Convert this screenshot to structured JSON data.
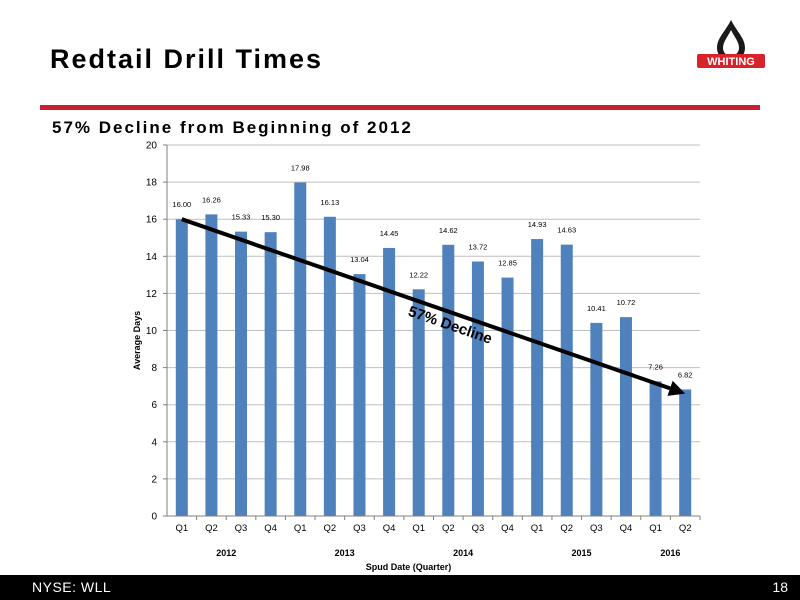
{
  "slide": {
    "title": "Redtail Drill Times",
    "subtitle": "57% Decline from Beginning of 2012",
    "logo_text": "WHITING"
  },
  "footer": {
    "left": "NYSE: WLL",
    "page_number": "18"
  },
  "colors": {
    "bar": "#4f81bd",
    "accent_red": "#c8202f",
    "logo_red": "#d8232a"
  },
  "chart_data": {
    "type": "bar",
    "categories": [
      "Q1",
      "Q2",
      "Q3",
      "Q4",
      "Q1",
      "Q2",
      "Q3",
      "Q4",
      "Q1",
      "Q2",
      "Q3",
      "Q4",
      "Q1",
      "Q2",
      "Q3",
      "Q4",
      "Q1",
      "Q2"
    ],
    "values": [
      16.0,
      16.26,
      15.33,
      15.3,
      17.98,
      16.13,
      13.04,
      14.45,
      12.22,
      14.62,
      13.72,
      12.85,
      14.93,
      14.63,
      10.41,
      10.72,
      7.26,
      6.82
    ],
    "value_labels": [
      "16.00",
      "16.26",
      "15.33",
      "15.30",
      "17.98",
      "16.13",
      "13.04",
      "14.45",
      "12.22",
      "14.62",
      "13.72",
      "12.85",
      "14.93",
      "14.63",
      "10.41",
      "10.72",
      "7.26",
      "6.82"
    ],
    "years": [
      {
        "label": "2012",
        "start": 0,
        "end": 3
      },
      {
        "label": "2013",
        "start": 4,
        "end": 7
      },
      {
        "label": "2014",
        "start": 8,
        "end": 11
      },
      {
        "label": "2015",
        "start": 12,
        "end": 15
      },
      {
        "label": "2016",
        "start": 16,
        "end": 17
      }
    ],
    "xlabel": "Spud Date (Quarter)",
    "ylabel": "Average Days",
    "ylim": [
      0,
      20
    ],
    "yticks": [
      "0",
      "2",
      "4",
      "6",
      "8",
      "10",
      "12",
      "14",
      "16",
      "18",
      "20"
    ],
    "grid": true,
    "annotation": {
      "text": "57% Decline",
      "arrow_from": {
        "category_index": 0,
        "value": 16.0
      },
      "arrow_to": {
        "category_index": 17,
        "value": 6.6
      }
    }
  }
}
